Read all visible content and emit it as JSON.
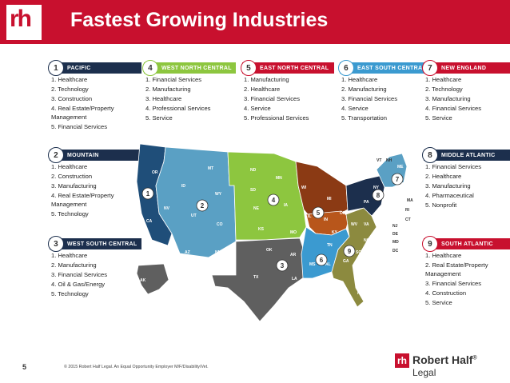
{
  "slide": {
    "title": "Fastest Growing Industries",
    "logo_text": "rh",
    "page_number": "5",
    "footer": "© 2015 Robert Half Legal. An Equal Opportunity Employer M/F/Disability/Vet.",
    "brand_mark": "rh",
    "brand_name": "Robert Half",
    "brand_trademark": "®",
    "brand_sub": "Legal"
  },
  "regions": [
    {
      "num": "1",
      "name": "PACIFIC",
      "color": "#1c2f4d",
      "items": [
        "1. Healthcare",
        "2. Technology",
        "3. Construction",
        "4. Real Estate/Property Management",
        "5. Financial Services"
      ]
    },
    {
      "num": "2",
      "name": "MOUNTAIN",
      "color": "#1c2f4d",
      "items": [
        "1. Healthcare",
        "2. Construction",
        "3. Manufacturing",
        "4. Real Estate/Property Management",
        "5. Technology"
      ]
    },
    {
      "num": "3",
      "name": "WEST SOUTH CENTRAL",
      "color": "#1c2f4d",
      "items": [
        "1. Healthcare",
        "2. Manufacturing",
        "3. Financial Services",
        "4. Oil & Gas/Energy",
        "5. Technology"
      ]
    },
    {
      "num": "4",
      "name": "WEST NORTH CENTRAL",
      "color": "#8dc63f",
      "items": [
        "1. Financial Services",
        "2. Manufacturing",
        "3. Healthcare",
        "4. Professional Services",
        "5. Service"
      ]
    },
    {
      "num": "5",
      "name": "EAST NORTH CENTRAL",
      "color": "#c8102e",
      "items": [
        "1. Manufacturing",
        "2. Healthcare",
        "3. Financial Services",
        "4. Service",
        "5. Professional Services"
      ]
    },
    {
      "num": "6",
      "name": "EAST SOUTH CENTRAL",
      "color": "#3b9ad0",
      "items": [
        "1. Healthcare",
        "2. Manufacturing",
        "3. Financial Services",
        "4. Service",
        "5. Transportation"
      ]
    },
    {
      "num": "7",
      "name": "NEW ENGLAND",
      "color": "#c8102e",
      "items": [
        "1. Healthcare",
        "2. Technology",
        "3. Manufacturing",
        "4. Financial Services",
        "5. Service"
      ]
    },
    {
      "num": "8",
      "name": "MIDDLE ATLANTIC",
      "color": "#1c2f4d",
      "items": [
        "1. Financial Services",
        "2. Healthcare",
        "3. Manufacturing",
        "4. Pharmaceutical",
        "5. Nonprofit"
      ]
    },
    {
      "num": "9",
      "name": "SOUTH ATLANTIC",
      "color": "#c8102e",
      "items": [
        "1. Healthcare",
        "2. Real Estate/Property Management",
        "3. Financial Services",
        "4. Construction",
        "5. Service"
      ]
    }
  ],
  "map": {
    "colors": {
      "pacific": "#1f4e79",
      "mountain": "#5aa0c4",
      "wsc": "#5f5f5f",
      "wnc": "#8dc63f",
      "enc": "#8b3a14",
      "enc2": "#b8561b",
      "esc": "#3b9ad0",
      "ne": "#5aa0c4",
      "mid": "#1c2f4d",
      "sa": "#8c8a3f"
    },
    "labels": {
      "wa": "WA",
      "or": "OR",
      "ca": "CA",
      "id": "ID",
      "nv": "NV",
      "mt": "MT",
      "wy": "WY",
      "ut": "UT",
      "co": "CO",
      "az": "AZ",
      "nm": "NM",
      "nd": "ND",
      "sd": "SD",
      "ne": "NE",
      "ks": "KS",
      "mn": "MN",
      "ia": "IA",
      "mo": "MO",
      "wi": "WI",
      "mi": "MI",
      "il": "IL",
      "in": "IN",
      "oh": "OH",
      "ok": "OK",
      "tx": "TX",
      "ar": "AR",
      "la": "LA",
      "ky": "KY",
      "tn": "TN",
      "ms": "MS",
      "al": "AL",
      "wv": "WV",
      "va": "VA",
      "nc": "NC",
      "sc": "SC",
      "ga": "GA",
      "fl": "FL",
      "ny": "NY",
      "pa": "PA",
      "nj": "NJ",
      "de": "DE",
      "md": "MD",
      "dc": "DC",
      "me": "ME",
      "vt": "VT",
      "nh": "NH",
      "ma": "MA",
      "ri": "RI",
      "ct": "CT",
      "ak": "AK"
    }
  }
}
